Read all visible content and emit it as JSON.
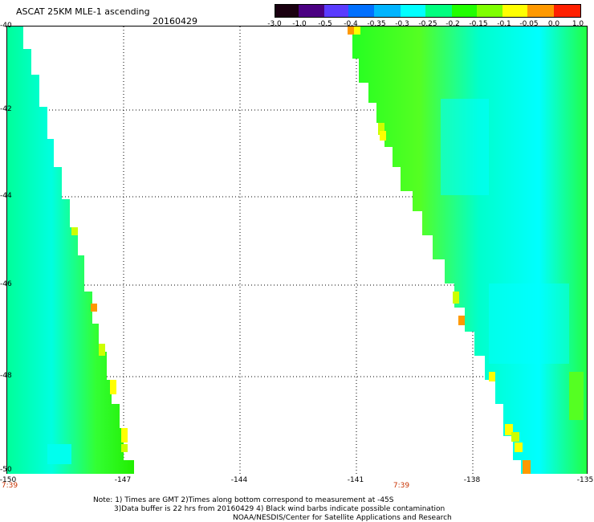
{
  "header": {
    "title": "ASCAT 25KM MLE-1 ascending",
    "date": "20160429"
  },
  "colorbar": {
    "tick_labels": [
      "-3.0",
      "-1.0",
      "-0.5",
      "-0.4",
      "-0.35",
      "-0.3",
      "-0.25",
      "-0.2",
      "-0.15",
      "-0.1",
      "-0.05",
      "0.0",
      "1.0"
    ],
    "colors": [
      "#1a0010",
      "#4b0082",
      "#5a3cff",
      "#0070ff",
      "#00b4ff",
      "#00ffff",
      "#00ff7f",
      "#22ff00",
      "#7fff00",
      "#ffff00",
      "#ff9900",
      "#ff2000"
    ]
  },
  "axes": {
    "lat_labels": [
      "-40",
      "-42",
      "-44",
      "-46",
      "-48",
      "-50"
    ],
    "lon_labels": [
      "-150",
      "-147",
      "-144",
      "-141",
      "-138",
      "-135"
    ],
    "time_labels": [
      "7:39",
      "7:39"
    ]
  },
  "notes": {
    "line1": "Note: 1) Times are GMT 2)Times along bottom correspond to measurement at -45S",
    "line2": "3)Data buffer is 22 hrs from 20160429 4) Black wind barbs indicate possible contamination",
    "line3": "NOAA/NESDIS/Center for Satellite Applications and Research"
  }
}
